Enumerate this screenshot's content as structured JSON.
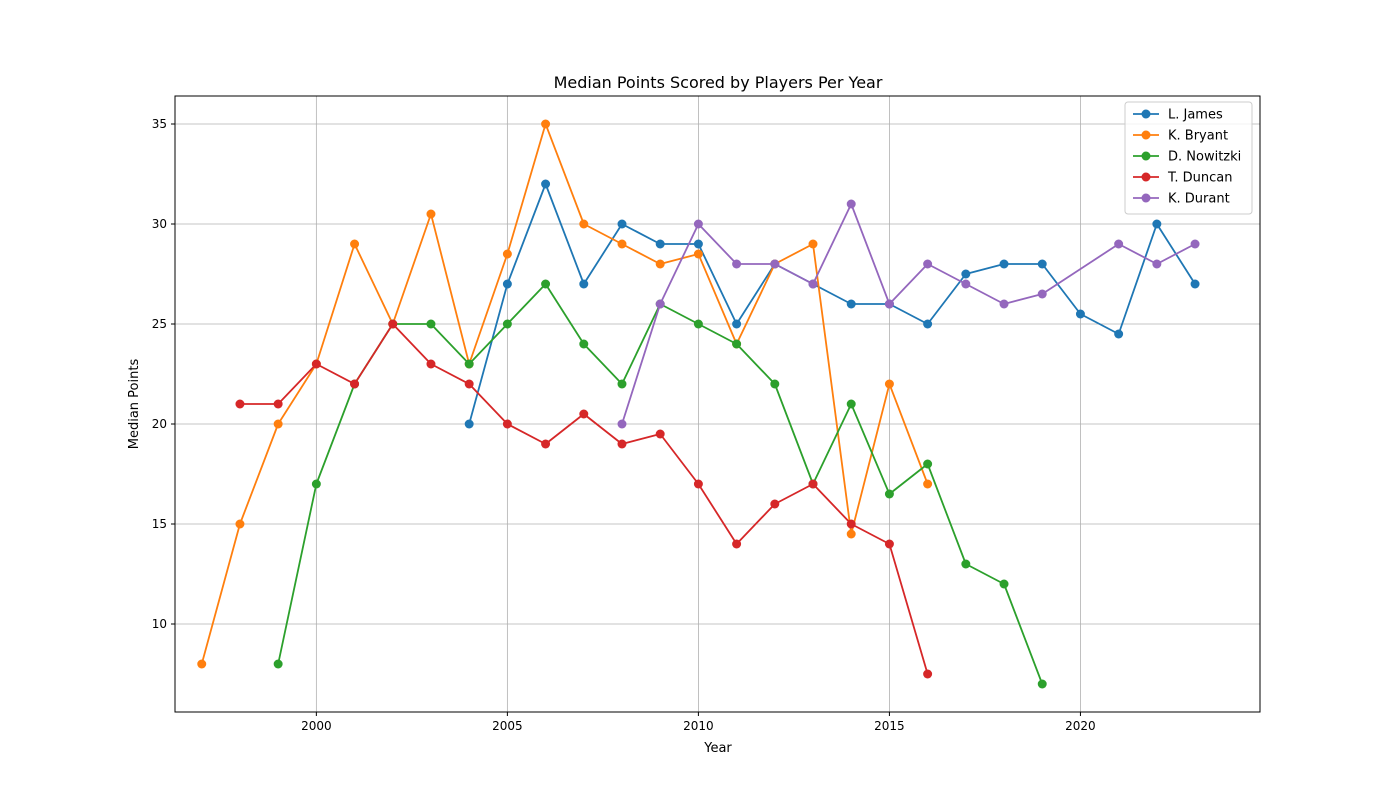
{
  "chart_data": {
    "type": "line",
    "title": "Median Points Scored by Players Per Year",
    "xlabel": "Year",
    "ylabel": "Median Points",
    "xlim": [
      1996.3,
      2024.7
    ],
    "ylim": [
      5.6,
      36.4
    ],
    "xticks": [
      2000,
      2005,
      2010,
      2015,
      2020
    ],
    "yticks": [
      10,
      15,
      20,
      25,
      30,
      35
    ],
    "grid": true,
    "legend_position": "top-right",
    "series": [
      {
        "name": "L. James",
        "color": "#1f77b4",
        "x": [
          2004,
          2005,
          2006,
          2007,
          2008,
          2009,
          2010,
          2011,
          2012,
          2013,
          2014,
          2015,
          2016,
          2017,
          2018,
          2019,
          2020,
          2021,
          2022,
          2023
        ],
        "y": [
          20,
          27,
          32,
          27,
          30,
          29,
          29,
          25,
          28,
          27,
          26,
          26,
          25,
          27.5,
          28,
          28,
          25.5,
          24.5,
          30,
          27
        ]
      },
      {
        "name": "K. Bryant",
        "color": "#ff7f0e",
        "x": [
          1997,
          1998,
          1999,
          2000,
          2001,
          2002,
          2003,
          2004,
          2005,
          2006,
          2007,
          2008,
          2009,
          2010,
          2011,
          2012,
          2013,
          2014,
          2015,
          2016
        ],
        "y": [
          8,
          15,
          20,
          23,
          29,
          25,
          30.5,
          23,
          28.5,
          35,
          30,
          29,
          28,
          28.5,
          24,
          28,
          29,
          14.5,
          22,
          17
        ]
      },
      {
        "name": "D. Nowitzki",
        "color": "#2ca02c",
        "x": [
          1999,
          2000,
          2001,
          2002,
          2003,
          2004,
          2005,
          2006,
          2007,
          2008,
          2009,
          2010,
          2011,
          2012,
          2013,
          2014,
          2015,
          2016,
          2017,
          2018,
          2019
        ],
        "y": [
          8,
          17,
          22,
          25,
          25,
          23,
          25,
          27,
          24,
          22,
          26,
          25,
          24,
          22,
          17,
          21,
          16.5,
          18,
          13,
          12,
          7
        ]
      },
      {
        "name": "T. Duncan",
        "color": "#d62728",
        "x": [
          1998,
          1999,
          2000,
          2001,
          2002,
          2003,
          2004,
          2005,
          2006,
          2007,
          2008,
          2009,
          2010,
          2011,
          2012,
          2013,
          2014,
          2015,
          2016
        ],
        "y": [
          21,
          21,
          23,
          22,
          25,
          23,
          22,
          20,
          19,
          20.5,
          19,
          19.5,
          17,
          14,
          16,
          17,
          15,
          14,
          7.5
        ]
      },
      {
        "name": "K. Durant",
        "color": "#9467bd",
        "x": [
          2008,
          2009,
          2010,
          2011,
          2012,
          2013,
          2014,
          2015,
          2016,
          2017,
          2018,
          2019,
          2021,
          2022,
          2023
        ],
        "y": [
          20,
          26,
          30,
          28,
          28,
          27,
          31,
          26,
          28,
          27,
          26,
          26.5,
          29,
          28,
          29
        ]
      }
    ]
  }
}
